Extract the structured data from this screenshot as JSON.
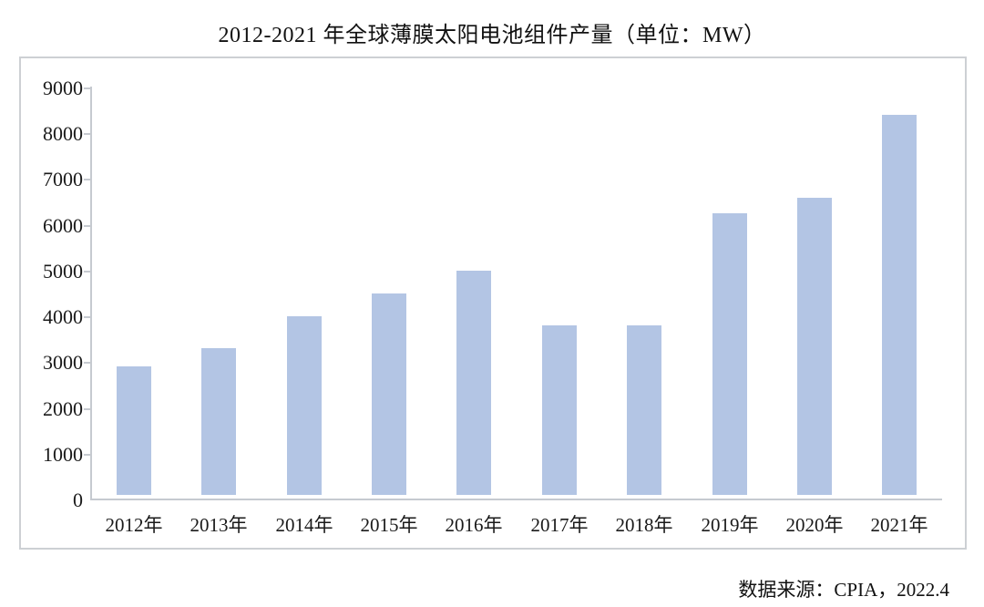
{
  "title": "2012-2021 年全球薄膜太阳电池组件产量（单位：MW）",
  "source_note": "数据来源：CPIA，2022.4",
  "colors": {
    "bar_fill": "#b3c5e4",
    "axis_line": "#c6cad0",
    "box_border": "#cdd0d4",
    "text": "#1a1a1a",
    "background": "#ffffff"
  },
  "chart_data": {
    "type": "bar",
    "title": "2012-2021 年全球薄膜太阳电池组件产量（单位：MW）",
    "categories": [
      "2012年",
      "2013年",
      "2014年",
      "2015年",
      "2016年",
      "2017年",
      "2018年",
      "2019年",
      "2020年",
      "2021年"
    ],
    "values": [
      2800,
      3200,
      3900,
      4400,
      4900,
      3700,
      3700,
      6150,
      6500,
      8300
    ],
    "unit": "MW",
    "xlabel": "",
    "ylabel": "",
    "ylim": [
      0,
      9000
    ],
    "ytick_step": 1000,
    "yticks": [
      0,
      1000,
      2000,
      3000,
      4000,
      5000,
      6000,
      7000,
      8000,
      9000
    ],
    "grid": false,
    "legend": "none",
    "data_labels": false,
    "source": "数据来源：CPIA，2022.4"
  }
}
